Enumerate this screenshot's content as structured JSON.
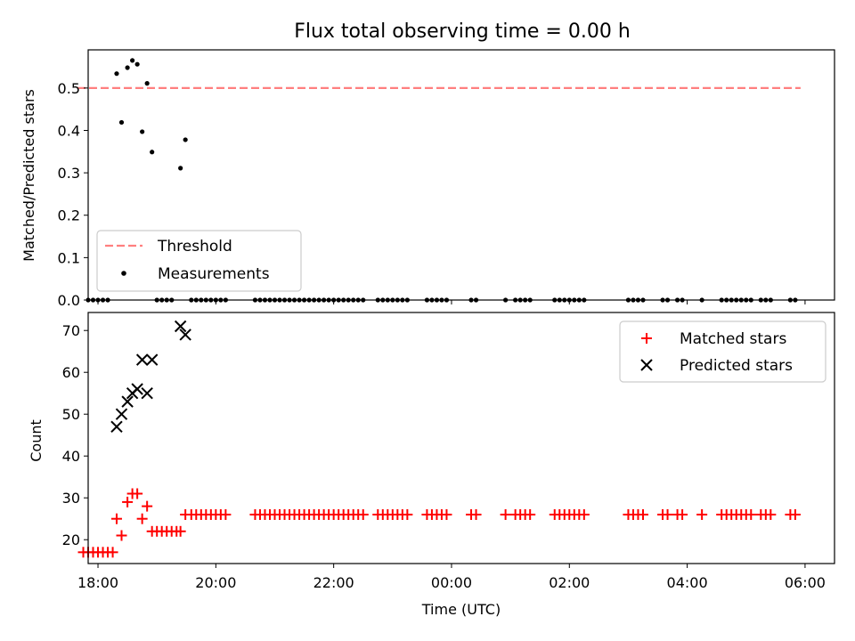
{
  "chart_data": [
    {
      "type": "scatter",
      "title": "Flux total observing time = 0.00 h",
      "ylabel": "Matched/Predicted stars",
      "xlim": [
        "17:50",
        "06:30"
      ],
      "ylim": [
        0,
        0.59
      ],
      "yticks": [
        0.0,
        0.1,
        0.2,
        0.3,
        0.4,
        0.5
      ],
      "legend_position": "lower-left",
      "threshold": {
        "name": "Threshold",
        "value": 0.5,
        "x_range": [
          "17:50",
          "05:50"
        ],
        "color": "#ff7f7f",
        "style": "dashed"
      },
      "series": [
        {
          "name": "Measurements",
          "color": "#000000",
          "marker": "dot",
          "points": [
            [
              "18:19",
              0.534
            ],
            [
              "18:24",
              0.419
            ],
            [
              "18:30",
              0.548
            ],
            [
              "18:35",
              0.565
            ],
            [
              "18:40",
              0.556
            ],
            [
              "18:45",
              0.397
            ],
            [
              "18:50",
              0.511
            ],
            [
              "18:55",
              0.349
            ],
            [
              "19:24",
              0.311
            ],
            [
              "19:29",
              0.378
            ],
            [
              "17:50",
              0.0
            ],
            [
              "17:55",
              0.0
            ],
            [
              "18:00",
              0.0
            ],
            [
              "18:05",
              0.0
            ],
            [
              "18:10",
              0.0
            ],
            [
              "19:00",
              0.0
            ],
            [
              "19:05",
              0.0
            ],
            [
              "19:10",
              0.0
            ],
            [
              "19:15",
              0.0
            ],
            [
              "19:35",
              0.0
            ],
            [
              "19:40",
              0.0
            ],
            [
              "19:45",
              0.0
            ],
            [
              "19:50",
              0.0
            ],
            [
              "19:55",
              0.0
            ],
            [
              "20:00",
              0.0
            ],
            [
              "20:05",
              0.0
            ],
            [
              "20:10",
              0.0
            ],
            [
              "20:40",
              0.0
            ],
            [
              "20:45",
              0.0
            ],
            [
              "20:50",
              0.0
            ],
            [
              "20:55",
              0.0
            ],
            [
              "21:00",
              0.0
            ],
            [
              "21:05",
              0.0
            ],
            [
              "21:10",
              0.0
            ],
            [
              "21:15",
              0.0
            ],
            [
              "21:20",
              0.0
            ],
            [
              "21:25",
              0.0
            ],
            [
              "21:30",
              0.0
            ],
            [
              "21:35",
              0.0
            ],
            [
              "21:40",
              0.0
            ],
            [
              "21:45",
              0.0
            ],
            [
              "21:50",
              0.0
            ],
            [
              "21:55",
              0.0
            ],
            [
              "22:00",
              0.0
            ],
            [
              "22:05",
              0.0
            ],
            [
              "22:10",
              0.0
            ],
            [
              "22:15",
              0.0
            ],
            [
              "22:20",
              0.0
            ],
            [
              "22:25",
              0.0
            ],
            [
              "22:30",
              0.0
            ],
            [
              "22:45",
              0.0
            ],
            [
              "22:50",
              0.0
            ],
            [
              "22:55",
              0.0
            ],
            [
              "23:00",
              0.0
            ],
            [
              "23:05",
              0.0
            ],
            [
              "23:10",
              0.0
            ],
            [
              "23:15",
              0.0
            ],
            [
              "23:35",
              0.0
            ],
            [
              "23:40",
              0.0
            ],
            [
              "23:45",
              0.0
            ],
            [
              "23:50",
              0.0
            ],
            [
              "23:55",
              0.0
            ],
            [
              "00:20",
              0.0
            ],
            [
              "00:25",
              0.0
            ],
            [
              "00:55",
              0.0
            ],
            [
              "01:05",
              0.0
            ],
            [
              "01:10",
              0.0
            ],
            [
              "01:15",
              0.0
            ],
            [
              "01:20",
              0.0
            ],
            [
              "01:45",
              0.0
            ],
            [
              "01:50",
              0.0
            ],
            [
              "01:55",
              0.0
            ],
            [
              "02:00",
              0.0
            ],
            [
              "02:05",
              0.0
            ],
            [
              "02:10",
              0.0
            ],
            [
              "02:15",
              0.0
            ],
            [
              "03:00",
              0.0
            ],
            [
              "03:05",
              0.0
            ],
            [
              "03:10",
              0.0
            ],
            [
              "03:15",
              0.0
            ],
            [
              "03:35",
              0.0
            ],
            [
              "03:40",
              0.0
            ],
            [
              "03:50",
              0.0
            ],
            [
              "03:55",
              0.0
            ],
            [
              "04:15",
              0.0
            ],
            [
              "04:35",
              0.0
            ],
            [
              "04:40",
              0.0
            ],
            [
              "04:45",
              0.0
            ],
            [
              "04:50",
              0.0
            ],
            [
              "04:55",
              0.0
            ],
            [
              "05:00",
              0.0
            ],
            [
              "05:05",
              0.0
            ],
            [
              "05:15",
              0.0
            ],
            [
              "05:20",
              0.0
            ],
            [
              "05:25",
              0.0
            ],
            [
              "05:45",
              0.0
            ],
            [
              "05:50",
              0.0
            ]
          ]
        }
      ]
    },
    {
      "type": "scatter",
      "xlabel": "Time (UTC)",
      "ylabel": "Count",
      "xlim": [
        "17:50",
        "06:30"
      ],
      "ylim": [
        14.3,
        74.3
      ],
      "yticks": [
        20,
        30,
        40,
        50,
        60,
        70
      ],
      "xticks": [
        "18:00",
        "20:00",
        "22:00",
        "00:00",
        "02:00",
        "04:00",
        "06:00"
      ],
      "legend_position": "upper-right",
      "series": [
        {
          "name": "Matched stars",
          "color": "#ff0000",
          "marker": "plus",
          "points": [
            [
              "17:45",
              17
            ],
            [
              "17:50",
              17
            ],
            [
              "17:55",
              17
            ],
            [
              "18:00",
              17
            ],
            [
              "18:05",
              17
            ],
            [
              "18:10",
              17
            ],
            [
              "18:15",
              17
            ],
            [
              "18:19",
              25
            ],
            [
              "18:24",
              21
            ],
            [
              "18:30",
              29
            ],
            [
              "18:35",
              31
            ],
            [
              "18:40",
              31
            ],
            [
              "18:45",
              25
            ],
            [
              "18:50",
              28
            ],
            [
              "18:55",
              22
            ],
            [
              "19:00",
              22
            ],
            [
              "19:05",
              22
            ],
            [
              "19:10",
              22
            ],
            [
              "19:15",
              22
            ],
            [
              "19:20",
              22
            ],
            [
              "19:24",
              22
            ],
            [
              "19:29",
              26
            ],
            [
              "19:35",
              26
            ],
            [
              "19:40",
              26
            ],
            [
              "19:45",
              26
            ],
            [
              "19:50",
              26
            ],
            [
              "19:55",
              26
            ],
            [
              "20:00",
              26
            ],
            [
              "20:05",
              26
            ],
            [
              "20:10",
              26
            ],
            [
              "20:40",
              26
            ],
            [
              "20:45",
              26
            ],
            [
              "20:50",
              26
            ],
            [
              "20:55",
              26
            ],
            [
              "21:00",
              26
            ],
            [
              "21:05",
              26
            ],
            [
              "21:10",
              26
            ],
            [
              "21:15",
              26
            ],
            [
              "21:20",
              26
            ],
            [
              "21:25",
              26
            ],
            [
              "21:30",
              26
            ],
            [
              "21:35",
              26
            ],
            [
              "21:40",
              26
            ],
            [
              "21:45",
              26
            ],
            [
              "21:50",
              26
            ],
            [
              "21:55",
              26
            ],
            [
              "22:00",
              26
            ],
            [
              "22:05",
              26
            ],
            [
              "22:10",
              26
            ],
            [
              "22:15",
              26
            ],
            [
              "22:20",
              26
            ],
            [
              "22:25",
              26
            ],
            [
              "22:30",
              26
            ],
            [
              "22:45",
              26
            ],
            [
              "22:50",
              26
            ],
            [
              "22:55",
              26
            ],
            [
              "23:00",
              26
            ],
            [
              "23:05",
              26
            ],
            [
              "23:10",
              26
            ],
            [
              "23:15",
              26
            ],
            [
              "23:35",
              26
            ],
            [
              "23:40",
              26
            ],
            [
              "23:45",
              26
            ],
            [
              "23:50",
              26
            ],
            [
              "23:55",
              26
            ],
            [
              "00:20",
              26
            ],
            [
              "00:25",
              26
            ],
            [
              "00:55",
              26
            ],
            [
              "01:05",
              26
            ],
            [
              "01:10",
              26
            ],
            [
              "01:15",
              26
            ],
            [
              "01:20",
              26
            ],
            [
              "01:45",
              26
            ],
            [
              "01:50",
              26
            ],
            [
              "01:55",
              26
            ],
            [
              "02:00",
              26
            ],
            [
              "02:05",
              26
            ],
            [
              "02:10",
              26
            ],
            [
              "02:15",
              26
            ],
            [
              "03:00",
              26
            ],
            [
              "03:05",
              26
            ],
            [
              "03:10",
              26
            ],
            [
              "03:15",
              26
            ],
            [
              "03:35",
              26
            ],
            [
              "03:40",
              26
            ],
            [
              "03:50",
              26
            ],
            [
              "03:55",
              26
            ],
            [
              "04:15",
              26
            ],
            [
              "04:35",
              26
            ],
            [
              "04:40",
              26
            ],
            [
              "04:45",
              26
            ],
            [
              "04:50",
              26
            ],
            [
              "04:55",
              26
            ],
            [
              "05:00",
              26
            ],
            [
              "05:05",
              26
            ],
            [
              "05:15",
              26
            ],
            [
              "05:20",
              26
            ],
            [
              "05:25",
              26
            ],
            [
              "05:45",
              26
            ],
            [
              "05:50",
              26
            ]
          ]
        },
        {
          "name": "Predicted stars",
          "color": "#000000",
          "marker": "x",
          "points": [
            [
              "18:19",
              47
            ],
            [
              "18:24",
              50
            ],
            [
              "18:30",
              53
            ],
            [
              "18:35",
              55
            ],
            [
              "18:40",
              56
            ],
            [
              "18:45",
              63
            ],
            [
              "18:50",
              55
            ],
            [
              "18:55",
              63
            ],
            [
              "19:24",
              71
            ],
            [
              "19:29",
              69
            ]
          ]
        }
      ]
    }
  ]
}
